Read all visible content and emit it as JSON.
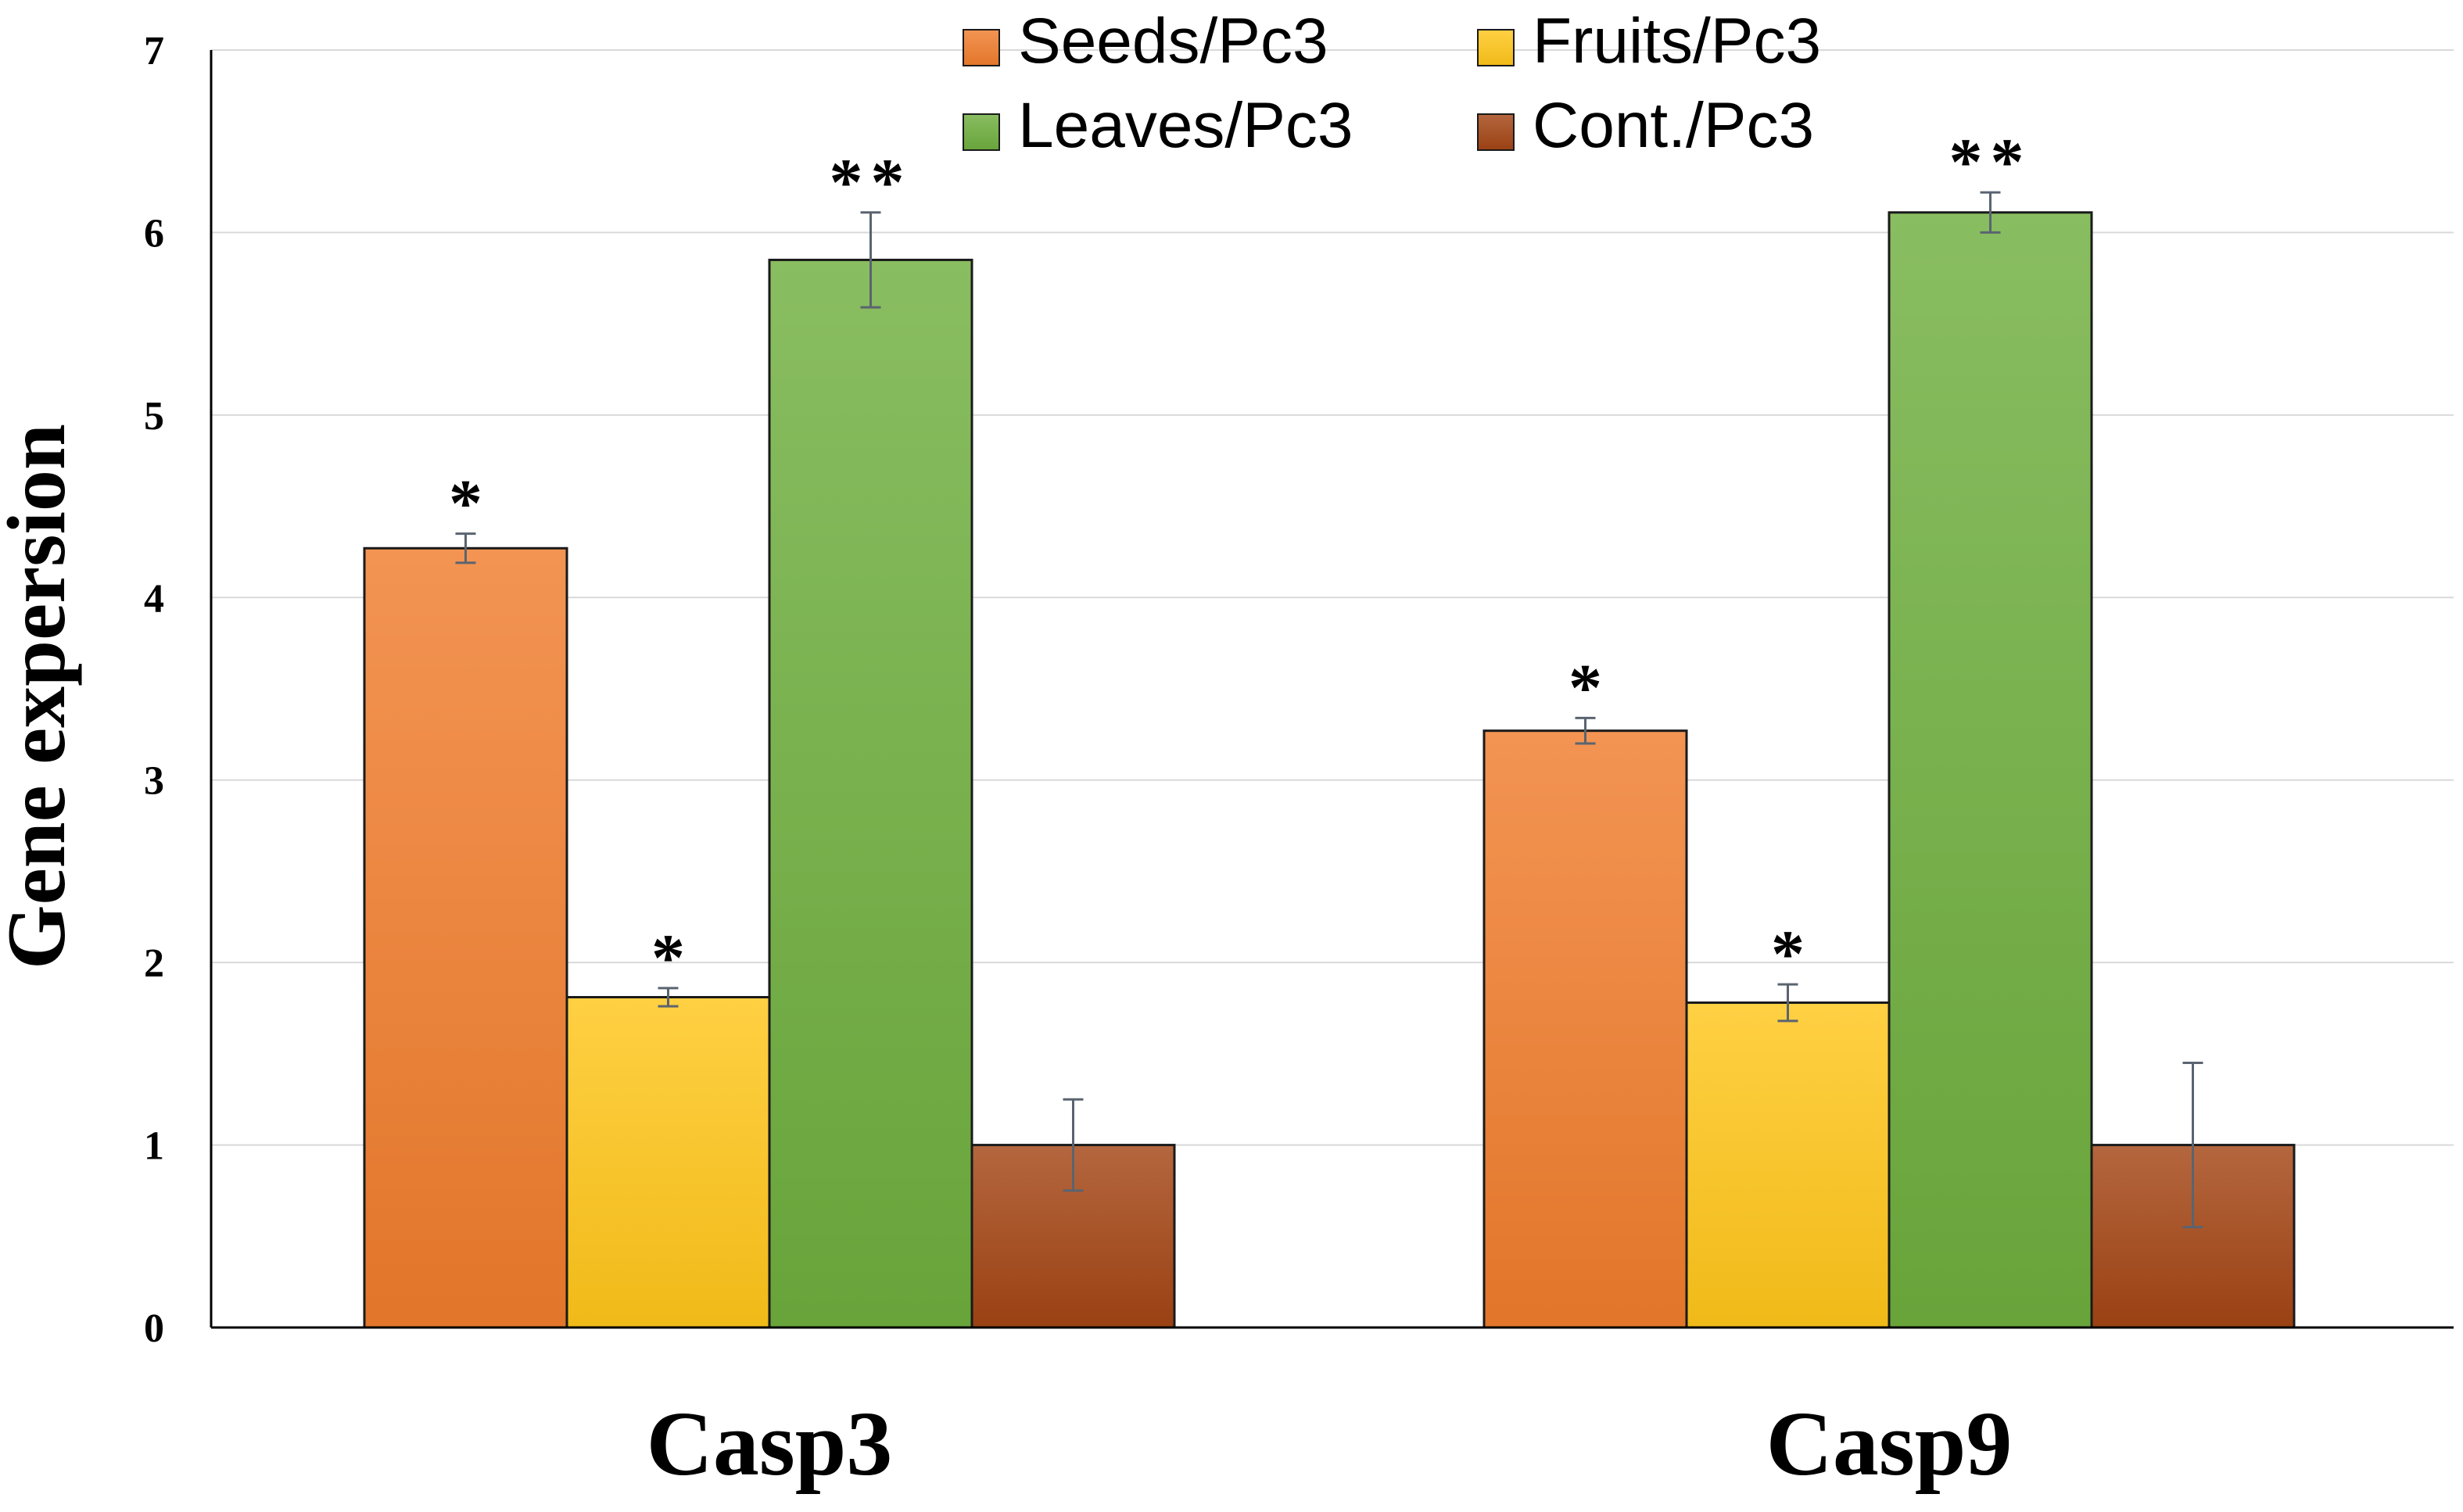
{
  "chart_data": {
    "type": "bar",
    "title": "",
    "xlabel": "",
    "ylabel": "Gene expersion",
    "ylim": [
      0,
      7
    ],
    "yticks": [
      "0",
      "1",
      "2",
      "3",
      "4",
      "5",
      "6",
      "7"
    ],
    "grid": true,
    "legend_position": "top-center",
    "categories": [
      "Casp3",
      "Casp9"
    ],
    "series": [
      {
        "name": "Seeds/Pc3",
        "color": "#F07D2D",
        "values": [
          4.27,
          3.27
        ],
        "errors": [
          0.08,
          0.07
        ],
        "significance": [
          "*",
          "*"
        ]
      },
      {
        "name": "Fruits/Pc3",
        "color": "#FFC61A",
        "values": [
          1.81,
          1.78
        ],
        "errors": [
          0.05,
          0.1
        ],
        "significance": [
          "*",
          "*"
        ]
      },
      {
        "name": "Leaves/Pc3",
        "color": "#6FAE3E",
        "values": [
          5.85,
          6.11
        ],
        "errors": [
          0.26,
          0.11
        ],
        "significance": [
          "**",
          "**"
        ]
      },
      {
        "name": "Cont./Pc3",
        "color": "#A44514",
        "values": [
          1.0,
          1.0
        ],
        "errors": [
          0.25,
          0.45
        ],
        "significance": [
          "",
          ""
        ]
      }
    ]
  }
}
